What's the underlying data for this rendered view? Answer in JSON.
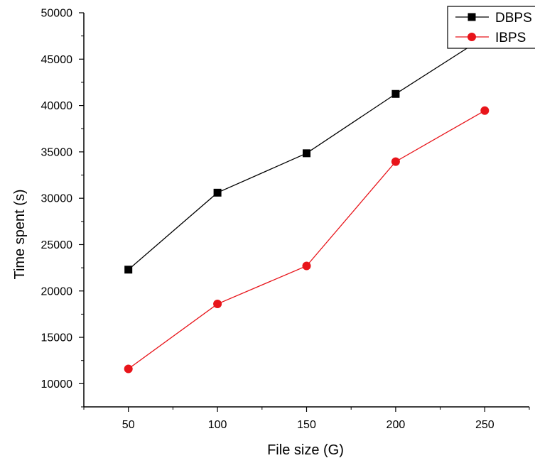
{
  "chart_data": {
    "type": "line",
    "title": "",
    "xlabel": "File size (G)",
    "ylabel": "Time spent (s)",
    "x": [
      50,
      100,
      150,
      200,
      250
    ],
    "xlim": [
      25,
      275
    ],
    "ylim": [
      7500,
      50000
    ],
    "x_ticks": [
      "50",
      "100",
      "150",
      "200",
      "250"
    ],
    "y_ticks": [
      "10000",
      "15000",
      "20000",
      "25000",
      "30000",
      "35000",
      "40000",
      "45000",
      "50000"
    ],
    "grid": false,
    "legend_position": "top-right",
    "series": [
      {
        "name": "DBPS",
        "color": "#000000",
        "marker": "square",
        "values": [
          22300,
          30600,
          34850,
          41250,
          47400
        ]
      },
      {
        "name": "IBPS",
        "color": "#e8141a",
        "marker": "circle",
        "values": [
          11600,
          18600,
          22700,
          33950,
          39450
        ]
      }
    ]
  }
}
